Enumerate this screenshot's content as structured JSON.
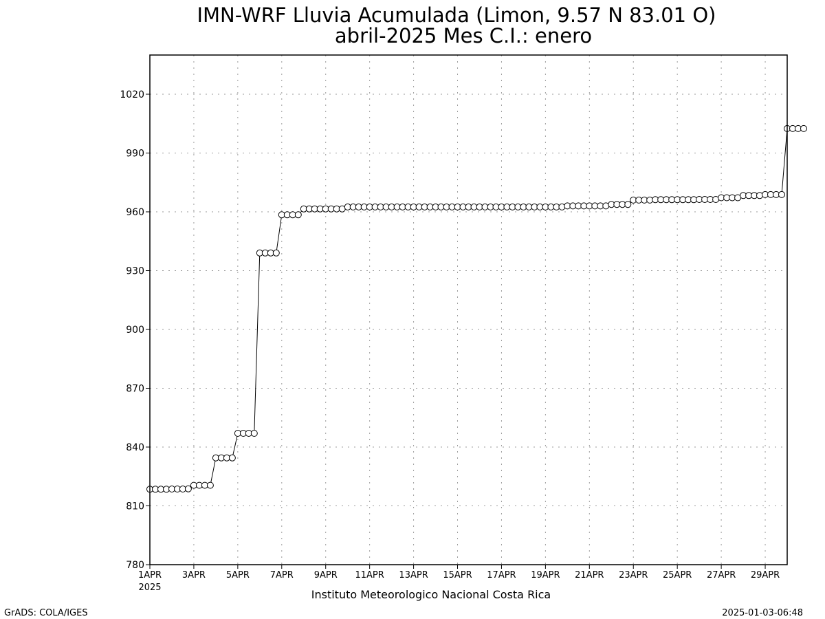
{
  "chart_data": {
    "type": "line",
    "title": "IMN-WRF  Lluvia Acumulada  (Limon, 9.57  N 83.01  O)",
    "subtitle": "abril-2025 Mes C.I.: enero",
    "xlabel": "",
    "ylabel": "",
    "ylim": [
      780,
      1040
    ],
    "xlim": [
      "2025-04-01",
      "2025-04-30"
    ],
    "yticks": [
      "780",
      "810",
      "840",
      "870",
      "900",
      "930",
      "960",
      "990",
      "1020"
    ],
    "xticks": [
      "1APR",
      "3APR",
      "5APR",
      "7APR",
      "9APR",
      "11APR",
      "13APR",
      "15APR",
      "17APR",
      "19APR",
      "21APR",
      "23APR",
      "25APR",
      "27APR",
      "29APR"
    ],
    "x_year_label": "2025",
    "grid": true,
    "marker": "open-circle",
    "time_step_hours": 6,
    "series": [
      {
        "values": [
          818.5,
          818.5,
          818.5,
          818.5,
          818.6,
          818.6,
          818.6,
          818.7,
          820.5,
          820.5,
          820.5,
          820.5,
          834.5,
          834.5,
          834.5,
          834.5,
          847.0,
          847.0,
          847.0,
          847.0,
          939.0,
          939.0,
          939.0,
          939.0,
          958.5,
          958.5,
          958.5,
          958.5,
          961.5,
          961.5,
          961.5,
          961.5,
          961.5,
          961.5,
          961.5,
          961.5,
          962.5,
          962.5,
          962.5,
          962.5,
          962.5,
          962.5,
          962.5,
          962.5,
          962.5,
          962.5,
          962.5,
          962.5,
          962.5,
          962.5,
          962.5,
          962.5,
          962.5,
          962.5,
          962.5,
          962.5,
          962.5,
          962.5,
          962.5,
          962.5,
          962.5,
          962.5,
          962.5,
          962.5,
          962.5,
          962.5,
          962.5,
          962.5,
          962.5,
          962.5,
          962.5,
          962.5,
          962.5,
          962.5,
          962.5,
          962.5,
          963.0,
          963.0,
          963.0,
          963.0,
          963.0,
          963.0,
          963.0,
          963.0,
          963.8,
          963.8,
          963.8,
          963.8,
          966.0,
          966.0,
          966.0,
          966.0,
          966.2,
          966.2,
          966.2,
          966.2,
          966.2,
          966.2,
          966.2,
          966.2,
          966.3,
          966.3,
          966.3,
          966.3,
          967.2,
          967.2,
          967.2,
          967.2,
          968.3,
          968.3,
          968.3,
          968.3,
          968.8,
          968.8,
          968.8,
          968.8,
          1002.5,
          1002.5,
          1002.5,
          1002.5
        ]
      }
    ]
  },
  "footer": {
    "institution": "Instituto Meteorologico Nacional Costa Rica",
    "left_credit": "GrADS: COLA/IGES",
    "right_timestamp": "2025-01-03-06:48"
  }
}
